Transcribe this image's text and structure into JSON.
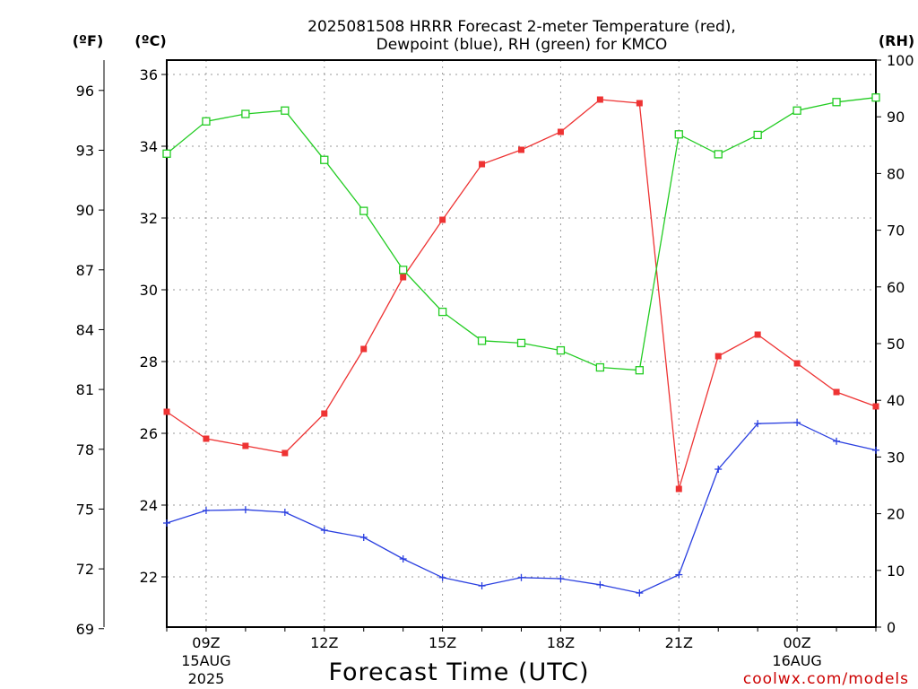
{
  "title_lines": [
    "2025081508 HRRR Forecast 2-meter Temperature (red),",
    "Dewpoint (blue), RH (green) for KMCO"
  ],
  "xlabel": "Forecast Time (UTC)",
  "credit": "coolwx.com/models",
  "units": {
    "fahrenheit": "(ºF)",
    "celsius": "(ºC)",
    "rh": "(RH)"
  },
  "colors": {
    "temperature": "#ee3333",
    "dewpoint": "#2a3fe0",
    "rh": "#22cc22"
  },
  "chart_data": {
    "type": "line",
    "x": [
      "08Z",
      "09Z",
      "10Z",
      "11Z",
      "12Z",
      "13Z",
      "14Z",
      "15Z",
      "16Z",
      "17Z",
      "18Z",
      "19Z",
      "20Z",
      "21Z",
      "22Z",
      "23Z",
      "00Z",
      "01Z",
      "02Z"
    ],
    "x_ticks": [
      {
        "label": "09Z",
        "date": "15AUG",
        "year": "2025"
      },
      {
        "label": "12Z",
        "date": "",
        "year": ""
      },
      {
        "label": "15Z",
        "date": "",
        "year": ""
      },
      {
        "label": "18Z",
        "date": "",
        "year": ""
      },
      {
        "label": "21Z",
        "date": "",
        "year": ""
      },
      {
        "label": "00Z",
        "date": "16AUG",
        "year": ""
      }
    ],
    "ylim_celsius": [
      20.6,
      36.4
    ],
    "y_ticks_celsius": [
      "22",
      "24",
      "26",
      "28",
      "30",
      "32",
      "34",
      "36"
    ],
    "y_ticks_fahrenheit": [
      "69",
      "72",
      "75",
      "78",
      "81",
      "84",
      "87",
      "90",
      "93",
      "96"
    ],
    "ylim_rh": [
      0,
      100
    ],
    "y_ticks_rh": [
      "0",
      "10",
      "20",
      "30",
      "40",
      "50",
      "60",
      "70",
      "80",
      "90",
      "100"
    ],
    "grid": true,
    "series": [
      {
        "key": "temperature",
        "marker": "filled-square",
        "values": [
          26.6,
          25.85,
          25.65,
          25.45,
          26.55,
          28.35,
          30.35,
          31.95,
          33.5,
          33.9,
          34.4,
          35.3,
          35.2,
          24.45,
          28.15,
          28.75,
          27.95,
          27.15,
          26.75
        ]
      },
      {
        "key": "dewpoint",
        "marker": "plus",
        "values": [
          23.5,
          23.85,
          23.87,
          23.8,
          23.3,
          23.1,
          22.5,
          21.98,
          21.75,
          21.98,
          21.95,
          21.78,
          21.55,
          22.06,
          25.0,
          26.27,
          26.3,
          25.78,
          25.53
        ]
      },
      {
        "key": "rh",
        "marker": "open-square",
        "values": [
          83.5,
          89.2,
          90.5,
          91.1,
          82.4,
          73.4,
          63.0,
          55.6,
          50.5,
          50.1,
          48.8,
          45.8,
          45.3,
          86.9,
          83.4,
          86.8,
          91.1,
          92.6,
          93.4
        ]
      }
    ]
  }
}
